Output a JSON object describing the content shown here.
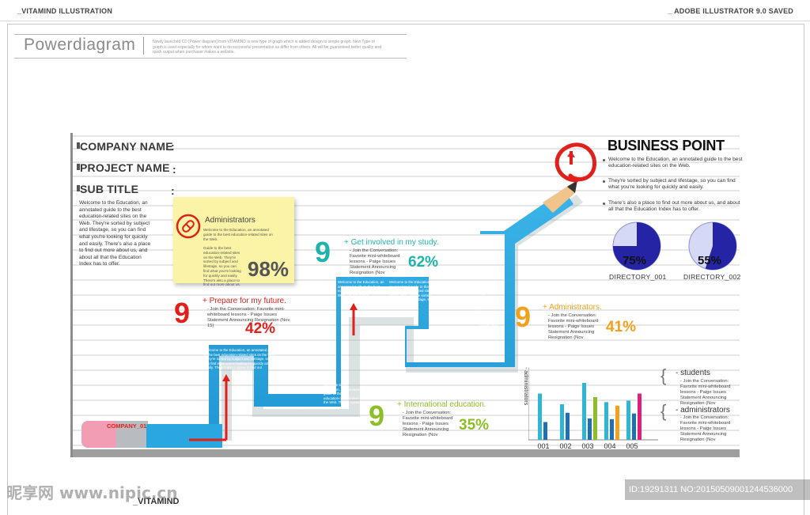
{
  "header": {
    "left": "_VITAMIND ILLUSTRATION",
    "right": "_ ADOBE ILLUSTRATOR 9.0 SAVED"
  },
  "powerdiagram": {
    "title": "Powerdiagram",
    "description": "Newly launched CD [Power diagram] from VITAMIND is new type of graph which is added design to simple graph. New Type of graph is used especially for whom want to do successful presentation as differ from others. All will be guaranteed better quality and quick output when purchaser makes a website."
  },
  "fields": {
    "company": "COMPANY NAME",
    "project": "PROJECT NAME",
    "subtitle": "SUB TITLE",
    "colon": ":"
  },
  "intro": "Welcome to the Education, an annotated guide to the best education-related sites on the Web. They're sorted by subject and lifestage, so you can find what you're looking for quickly and easily. There's also a place to find out more about us, and about all that the Education Index has to offer.",
  "note": {
    "title": "Administrators",
    "text1": "Welcome to the Education, an annotated guide to the best education-related sites on the Web.",
    "text2": "Guide to the best education-related sites on the Web. They're sorted by subject and lifestage, so you can find what you're looking for quickly and easily. There's also a place to find out more about us.",
    "percent": "98%"
  },
  "steps": [
    {
      "title": "+ Prepare for my future.",
      "text": "- Join the Conversation: Favorite mini-whiteboard lessons - Paige Issues Statement Announcing Resignation (Nov 15)",
      "percent": "42%",
      "color": "#e0201b"
    },
    {
      "title": "+ Get involved in my study.",
      "text": "- Join the Conversation: Favorite mini-whiteboard lessons - Paige Issues Statement Announcing Resignation (Nov",
      "percent": "62%",
      "color": "#1fb3ad"
    },
    {
      "title": "+ Administrators.",
      "text": "- Join the Conversation: Favorite mini-whiteboard lessons - Paige Issues Statement Announcing Resignation (Nov",
      "percent": "41%",
      "color": "#f2a21a"
    },
    {
      "title": "+ International education.",
      "text": "- Join the Conversation: Favorite mini-whiteboard lessons - Paige Issues Statement Announcing Resignation (Nov",
      "percent": "35%",
      "color": "#8cbf26"
    }
  ],
  "path_boxes": [
    "Welcome to the Education, an annotated guide to the best education-related sites on the Web. They're sorted by subject and lifestage, so you can find what you're looking for quickly and easily. There's also a place to find out",
    "Welcome to the Education, an annotated guide to the best education-related sites on the Web. They're sorted",
    "Welcome to the Education, an annotated guide to the best education-related sites on the Web. They're sorted by subject and lifestage, so",
    "Welcome to the Education, an annotated guide to the best education-related sites on the Web. They're sorted",
    "Welcome to the Education, an annotated guide to the best education-related sites on the Web. They're sorted by subject and lifestage"
  ],
  "pencil_label": "COMPANY_01",
  "business_point": {
    "title": "BUSINESS POINT",
    "items": [
      "Welcome to the Education, an annotated guide to the best education-related sites on the Web.",
      "They're sorted by subject and lifestage, so you can find what you're looking for quickly and easily.",
      "There's also a place to find out more about us, and about all that the Education Index has to offer."
    ]
  },
  "pies": [
    {
      "label": "75%",
      "value": 0.75,
      "name": "DIRECTORY_001"
    },
    {
      "label": "55%",
      "value": 0.55,
      "name": "DIRECTORY_002"
    }
  ],
  "chart_data": {
    "type": "bar",
    "categories": [
      "001",
      "002",
      "003",
      "004",
      "005"
    ],
    "ylabel": "- administrators",
    "series": [
      {
        "name": "students",
        "color": "#2fb6d5",
        "values": [
          65,
          50,
          80,
          53,
          55
        ]
      },
      {
        "name": "administrators",
        "color": "#1f6fb3",
        "values": [
          25,
          38,
          30,
          29,
          37
        ]
      }
    ],
    "accent": [
      {
        "color": "#e0207a",
        "values": [
          0,
          0,
          0,
          0,
          65
        ]
      },
      {
        "color": "#8cbf26",
        "values": [
          0,
          0,
          60,
          0,
          0
        ]
      },
      {
        "color": "#f2a21a",
        "values": [
          0,
          0,
          0,
          48,
          0
        ]
      }
    ],
    "ylim": [
      0,
      100
    ]
  },
  "legend": [
    {
      "title": "- students",
      "text": "- Join the Conversation: Favorite mini-whiteboard lessons - Paige Issues Statement Announcing Resignation (Nov"
    },
    {
      "title": "- administrators",
      "text": "- Join the Conversation: Favorite mini-whiteboard lessons - Paige Issues Statement Announcing Resignation (Nov"
    }
  ],
  "footer": {
    "watermark": "昵享网 www.nipic.cn",
    "id": "ID:19291311 NO:20150509001244536000",
    "bottom": "_VITAMIND"
  },
  "colors": {
    "blue": "#2aa7e0",
    "red": "#e0201b",
    "chart_line": "#cccccc"
  }
}
